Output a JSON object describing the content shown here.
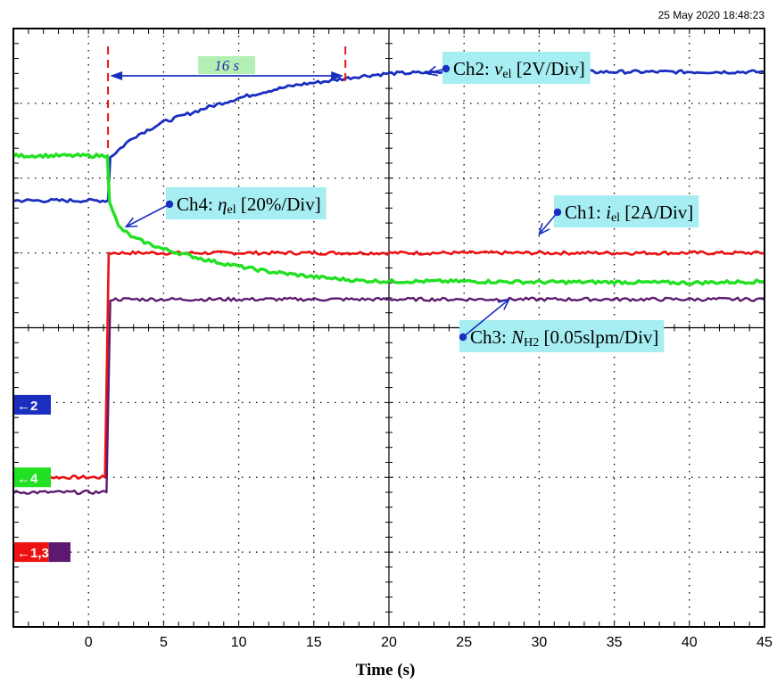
{
  "timestamp": "25 May 2020  18:48:23",
  "colors": {
    "ch1": "#ee1111",
    "ch2": "#1a2fbf",
    "ch3": "#5c1a6e",
    "ch4": "#22e022",
    "label_bg": "#a6eef2",
    "arrow": "#1a2fbf",
    "dim_bg": "#b4f0b4"
  },
  "chart_data": {
    "type": "line",
    "title": "",
    "xlabel": "Time (s)",
    "ylabel": "",
    "xlim": [
      -5,
      45
    ],
    "ylim": [
      -4,
      4
    ],
    "x_ticks": [
      "0",
      "5",
      "10",
      "15",
      "20",
      "25",
      "30",
      "35",
      "40",
      "45"
    ],
    "grid": true,
    "series": [
      {
        "name": "Ch1",
        "x": [
          -5,
          1.1,
          1.35,
          45
        ],
        "y": [
          -2.0,
          -2.0,
          1.0,
          1.0
        ]
      },
      {
        "name": "Ch2",
        "x": [
          -5,
          1.3,
          1.45,
          3,
          5,
          8,
          10,
          12,
          14,
          16,
          18,
          20,
          25,
          30,
          35,
          45
        ],
        "y": [
          1.7,
          1.7,
          2.28,
          2.55,
          2.75,
          2.95,
          3.07,
          3.17,
          3.25,
          3.3,
          3.36,
          3.4,
          3.42,
          3.42,
          3.42,
          3.42
        ]
      },
      {
        "name": "Ch3",
        "x": [
          -5,
          1.2,
          1.45,
          45
        ],
        "y": [
          -2.2,
          -2.2,
          0.38,
          0.38
        ]
      },
      {
        "name": "Ch4",
        "x": [
          -5,
          1.25,
          1.4,
          2,
          3,
          5,
          8,
          10,
          12,
          15,
          18,
          20,
          25,
          30,
          35,
          40,
          45
        ],
        "y": [
          2.3,
          2.3,
          1.7,
          1.35,
          1.2,
          1.05,
          0.9,
          0.82,
          0.75,
          0.68,
          0.63,
          0.62,
          0.62,
          0.61,
          0.61,
          0.6,
          0.62
        ]
      }
    ],
    "annotations": [
      {
        "channel": "Ch2",
        "prefix": "Ch2: ",
        "symbol": "v",
        "subscript": "el",
        "suffix": " [2V/Div]",
        "points_to": [
          22.5,
          3.4
        ]
      },
      {
        "channel": "Ch4",
        "prefix": "Ch4: ",
        "symbol": "η",
        "subscript": "el",
        "suffix": " [20%/Div]",
        "points_to": [
          2.5,
          1.35
        ]
      },
      {
        "channel": "Ch1",
        "prefix": "Ch1: ",
        "symbol": "i",
        "subscript": "el",
        "suffix": " [2A/Div]",
        "points_to": [
          30.0,
          1.25
        ]
      },
      {
        "channel": "Ch3",
        "prefix": "Ch3: ",
        "symbol": "N",
        "subscript": "H2",
        "suffix": " [0.05slpm/Div]",
        "points_to": [
          28.0,
          0.38
        ]
      }
    ],
    "interval": {
      "label": "16 s",
      "start": 1.3,
      "end": 17.1
    },
    "channel_markers": [
      {
        "label": "←2",
        "level": -1.03
      },
      {
        "label": "←4",
        "level": -2.0
      },
      {
        "label": "←1,3",
        "level": -3.0
      }
    ]
  }
}
